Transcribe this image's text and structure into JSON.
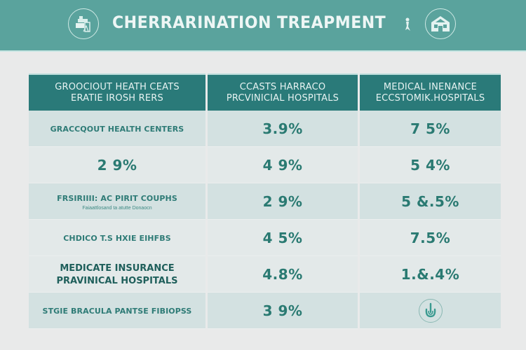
{
  "header": {
    "title": "CHERRARINATION TREAPMENT",
    "left_icon": "hospital-building-icon",
    "right_icon": "house-icon",
    "title_mark_icon": "figure-icon"
  },
  "colors": {
    "header_bg": "#5aa39d",
    "table_header_bg": "#2a7a79",
    "row_dark": "#d3e1e1",
    "row_light": "#e3e9e9",
    "accent_text": "#2a7a72",
    "page_bg": "#e9eaea"
  },
  "table": {
    "columns": [
      {
        "line1": "GROOCIOUT HEATH CEATS",
        "line2": "ERATIE IROSH RERS"
      },
      {
        "line1": "CCASTS HARRACO",
        "line2": "PRCVINICIAL HOSPITALS"
      },
      {
        "line1": "MEDICAL INENANCE",
        "line2": "ECCSTOMIK.HOSPITALS"
      }
    ],
    "rows": [
      {
        "label": "GRACCQOUT HEALTH CENTERS",
        "label_sub": "",
        "col2": "3.9%",
        "col3": "7 5%"
      },
      {
        "label": "2 9%",
        "label_sub": "",
        "col2": "4 9%",
        "col3": "5 4%"
      },
      {
        "label": "FRSIRIIII: AC PIRIT COUPHS",
        "label_sub": "Faiaattlosand ta atutte Donaocn",
        "col2": "2 9%",
        "col3": "5 &.5%"
      },
      {
        "label": "CHDICO T.S HXIE EIHFBS",
        "label_sub": "",
        "col2": "4 5%",
        "col3": "7.5%"
      },
      {
        "label": "MEDICATE INSURANCE",
        "label_sub": "PRAVINICAL HOSPITALS",
        "col2": "4.8%",
        "col3": "1.&.4%"
      },
      {
        "label": "STGIE BRACULA PANTSE FIBIOPSS",
        "label_sub": "",
        "col2": "3 9%",
        "col3": "",
        "col3_icon": "hand-pointer-icon"
      }
    ]
  }
}
